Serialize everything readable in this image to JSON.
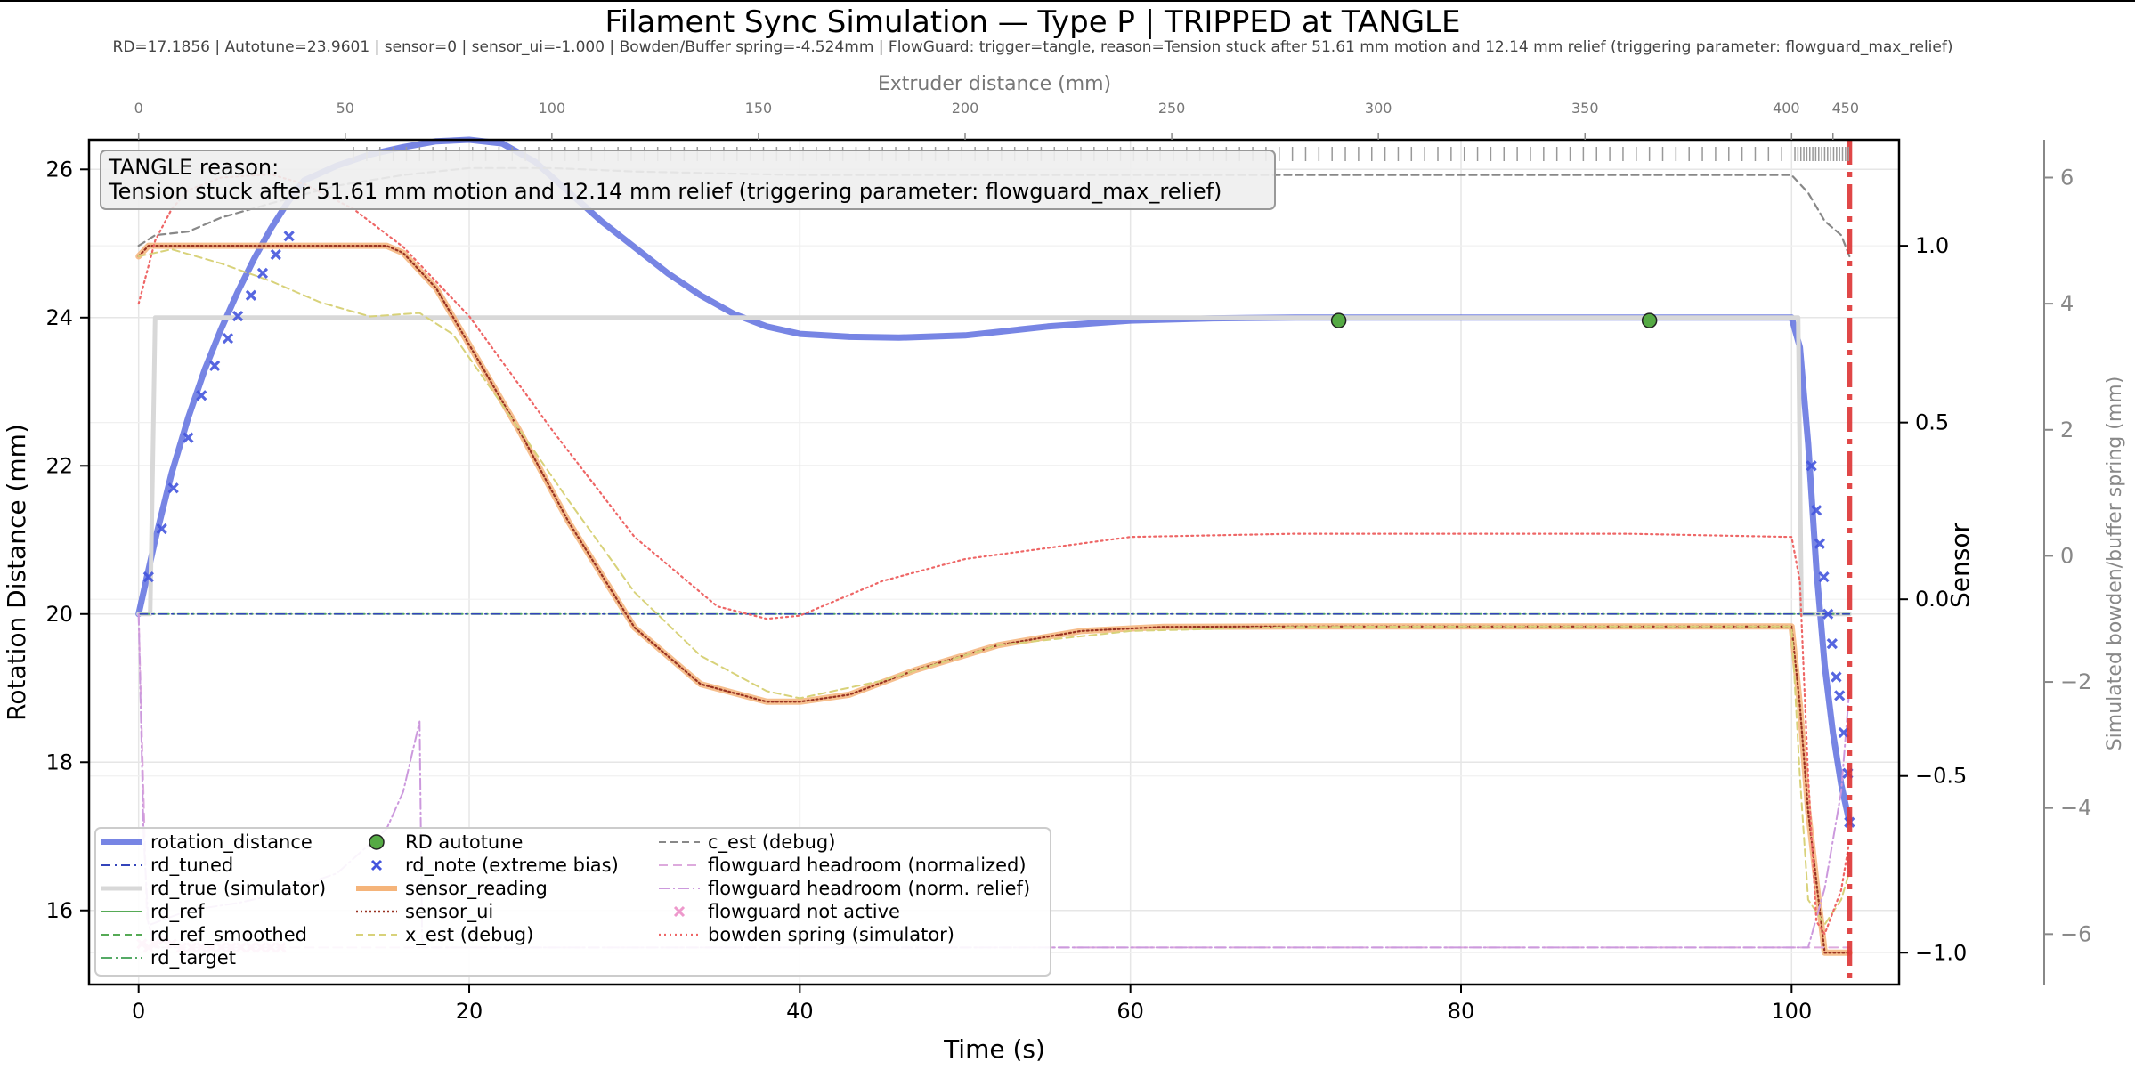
{
  "chart_data": {
    "type": "line",
    "title": "Filament Sync Simulation — Type P | TRIPPED at TANGLE",
    "subtitle": "RD=17.1856 | Autotune=23.9601 | sensor=0 | sensor_ui=-1.000 | Bowden/Buffer spring=-4.524mm | FlowGuard: trigger=tangle, reason=Tension stuck after 51.61 mm motion and 12.14 mm relief (triggering parameter: flowguard_max_relief)",
    "xlabel": "Time (s)",
    "ylabel": "Rotation Distance (mm)",
    "y2label": "Sensor",
    "y3label": "Simulated bowden/buffer spring (mm)",
    "top_xlabel": "Extruder distance (mm)",
    "xlim": [
      -3,
      106.5
    ],
    "ylim": [
      15.0,
      26.4
    ],
    "y2lim": [
      -1.09,
      1.3
    ],
    "y3lim": [
      -6.8,
      6.6
    ],
    "x_ticks": [
      0,
      20,
      40,
      60,
      80,
      100
    ],
    "y_ticks": [
      16,
      18,
      20,
      22,
      24,
      26
    ],
    "y2_ticks": [
      -1.0,
      -0.5,
      0.0,
      0.5,
      1.0
    ],
    "y2_tick_labels": [
      "−1.0",
      "−0.5",
      "0.0",
      "0.5",
      "1.0"
    ],
    "y3_ticks": [
      -6,
      -4,
      -2,
      0,
      2,
      4,
      6
    ],
    "y3_tick_labels": [
      "−6",
      "−4",
      "−2",
      "0",
      "2",
      "4",
      "6"
    ],
    "top_ticks": [
      {
        "t": 0,
        "label": "0"
      },
      {
        "t": 12.5,
        "label": "50"
      },
      {
        "t": 25,
        "label": "100"
      },
      {
        "t": 37.5,
        "label": "150"
      },
      {
        "t": 50,
        "label": "200"
      },
      {
        "t": 62.5,
        "label": "250"
      },
      {
        "t": 75,
        "label": "300"
      },
      {
        "t": 87.5,
        "label": "350"
      },
      {
        "t": 100,
        "label": "400"
      },
      {
        "t": 102.5,
        "label": "450"
      }
    ],
    "grid": true,
    "trip_time": 103.5,
    "annotation": {
      "title": "TANGLE reason:",
      "text": "Tension stuck after 51.61 mm motion and 12.14 mm relief (triggering parameter: flowguard_max_relief)"
    },
    "legend_position": "lower-left",
    "legend": [
      [
        "rotation_distance",
        "rd_tuned",
        "rd_true (simulator)",
        "rd_ref",
        "rd_ref_smoothed",
        "rd_target"
      ],
      [
        "RD autotune",
        "rd_note (extreme bias)",
        "sensor_reading",
        "sensor_ui",
        "x_est (debug)"
      ],
      [
        "c_est (debug)",
        "flowguard headroom (normalized)",
        "flowguard headroom (norm. relief)",
        "flowguard not active",
        "bowden spring (simulator)"
      ]
    ],
    "series": [
      {
        "name": "rotation_distance",
        "axis": "y",
        "color": "#5566dd",
        "x": [
          0,
          1,
          2,
          3,
          4,
          5,
          6,
          7,
          8,
          9,
          10,
          12,
          14,
          16,
          18,
          20,
          22,
          24,
          26,
          28,
          30,
          32,
          34,
          36,
          38,
          40,
          43,
          46,
          50,
          55,
          60,
          65,
          70,
          75,
          80,
          85,
          90,
          95,
          100,
          100.5,
          101,
          101.5,
          102,
          102.5,
          103,
          103.5
        ],
        "y": [
          20.0,
          21.0,
          21.9,
          22.65,
          23.3,
          23.85,
          24.35,
          24.8,
          25.2,
          25.55,
          25.85,
          26.05,
          26.2,
          26.3,
          26.38,
          26.4,
          26.35,
          26.1,
          25.7,
          25.3,
          24.95,
          24.6,
          24.3,
          24.05,
          23.88,
          23.78,
          23.74,
          23.73,
          23.76,
          23.88,
          23.96,
          23.99,
          24.0,
          24.0,
          24.0,
          24.0,
          24.0,
          24.0,
          24.0,
          23.6,
          22.3,
          20.6,
          19.3,
          18.4,
          17.7,
          17.19
        ]
      },
      {
        "name": "rd_true (simulator)",
        "axis": "y",
        "color": "#d8d8d8",
        "x": [
          0,
          0.7,
          1.0,
          100,
          100.4,
          100.6,
          103.5
        ],
        "y": [
          20.0,
          20.0,
          24.0,
          24.0,
          24.0,
          20.0,
          20.0
        ]
      },
      {
        "name": "rd_target",
        "axis": "y",
        "color": "#55aa66",
        "x": [
          0,
          103.5
        ],
        "y": [
          20.0,
          20.0
        ]
      },
      {
        "name": "rd_tuned",
        "axis": "y",
        "color": "#3344bb",
        "x": [
          0,
          103.5
        ],
        "y": [
          20.0,
          20.0
        ]
      },
      {
        "name": "sensor_reading",
        "axis": "y2",
        "color": "#f5b47a",
        "x": [
          0,
          0.6,
          1,
          15,
          16,
          18,
          20,
          23,
          26,
          30,
          34,
          38,
          40,
          43,
          47,
          52,
          57,
          62,
          70,
          80,
          90,
          100,
          100.5,
          101,
          102,
          103.5
        ],
        "y": [
          0.97,
          1.0,
          1.0,
          1.0,
          0.98,
          0.88,
          0.72,
          0.48,
          0.22,
          -0.08,
          -0.24,
          -0.29,
          -0.29,
          -0.27,
          -0.2,
          -0.13,
          -0.09,
          -0.078,
          -0.077,
          -0.077,
          -0.077,
          -0.077,
          -0.3,
          -0.6,
          -1.0,
          -1.0
        ]
      },
      {
        "name": "sensor_ui",
        "axis": "y2",
        "color": "#993322",
        "x": [
          0,
          0.6,
          1,
          15,
          16,
          18,
          20,
          23,
          26,
          30,
          34,
          38,
          40,
          43,
          47,
          52,
          57,
          62,
          70,
          80,
          90,
          100,
          100.5,
          101,
          102,
          103.5
        ],
        "y": [
          0.97,
          1.0,
          1.0,
          1.0,
          0.98,
          0.88,
          0.72,
          0.48,
          0.22,
          -0.08,
          -0.24,
          -0.29,
          -0.29,
          -0.27,
          -0.2,
          -0.13,
          -0.09,
          -0.078,
          -0.077,
          -0.077,
          -0.077,
          -0.077,
          -0.3,
          -0.6,
          -1.0,
          -1.0
        ]
      },
      {
        "name": "x_est (debug)",
        "axis": "y2",
        "color": "#d8d27a",
        "x": [
          0,
          2,
          5,
          8,
          11,
          14,
          17,
          19,
          22,
          26,
          30,
          34,
          38,
          40,
          45,
          52,
          60,
          70,
          80,
          90,
          100,
          100.5,
          101,
          102,
          103,
          103.5
        ],
        "y": [
          0.97,
          0.99,
          0.95,
          0.9,
          0.84,
          0.8,
          0.81,
          0.75,
          0.55,
          0.28,
          0.02,
          -0.16,
          -0.26,
          -0.28,
          -0.23,
          -0.13,
          -0.09,
          -0.078,
          -0.077,
          -0.077,
          -0.077,
          -0.5,
          -0.85,
          -0.92,
          -0.85,
          -0.77
        ]
      },
      {
        "name": "c_est (debug)",
        "axis": "y2",
        "color": "#888888",
        "x": [
          0,
          1,
          3,
          5,
          8,
          12,
          16,
          20,
          25,
          30,
          40,
          50,
          60,
          70,
          80,
          90,
          100,
          101,
          102,
          103,
          103.5
        ],
        "y": [
          1.0,
          1.03,
          1.04,
          1.08,
          1.12,
          1.17,
          1.2,
          1.22,
          1.22,
          1.21,
          1.2,
          1.2,
          1.2,
          1.2,
          1.2,
          1.2,
          1.2,
          1.15,
          1.07,
          1.03,
          0.97
        ]
      },
      {
        "name": "flowguard headroom (normalized)",
        "axis": "y",
        "color": "#ddaadd",
        "x": [
          0,
          0.5,
          1,
          17,
          17.3,
          103.5
        ],
        "y": [
          20.0,
          15.9,
          15.5,
          15.5,
          15.5,
          15.5
        ]
      },
      {
        "name": "flowguard headroom (norm. relief)",
        "axis": "y",
        "color": "#cc99dd",
        "x": [
          0,
          0.3,
          0.6,
          3,
          6,
          8,
          12,
          15,
          16,
          17,
          17.15,
          17.3,
          101,
          102,
          103,
          103.5
        ],
        "y": [
          20.0,
          17.0,
          15.8,
          16.0,
          16.1,
          16.2,
          16.5,
          17.1,
          17.6,
          18.55,
          15.6,
          15.5,
          15.5,
          16.3,
          17.6,
          19.0
        ]
      },
      {
        "name": "bowden spring (simulator)",
        "axis": "y3",
        "color": "#ee6666",
        "x": [
          0,
          1,
          2,
          3,
          5,
          8,
          10,
          13,
          16,
          20,
          25,
          30,
          35,
          38,
          40,
          45,
          50,
          60,
          70,
          80,
          90,
          100,
          100.5,
          101,
          101.5,
          102,
          103,
          103.5
        ],
        "y": [
          4.0,
          5.0,
          5.5,
          5.8,
          6.0,
          6.05,
          5.9,
          5.5,
          4.9,
          3.8,
          2.0,
          0.3,
          -0.8,
          -1.0,
          -0.95,
          -0.4,
          -0.05,
          0.3,
          0.35,
          0.35,
          0.35,
          0.3,
          -0.4,
          -3.5,
          -5.8,
          -6.0,
          -5.3,
          -4.52
        ]
      },
      {
        "name": "RD autotune",
        "axis": "y",
        "color": "#55aa44",
        "marker": "circle",
        "x": [
          72.6,
          91.4
        ],
        "y": [
          23.96,
          23.96
        ]
      },
      {
        "name": "rd_note (extreme bias)",
        "axis": "y",
        "color": "#4455dd",
        "marker": "x",
        "x": [
          0.6,
          1.4,
          2.1,
          3.0,
          3.8,
          4.6,
          5.4,
          6.0,
          6.8,
          7.5,
          8.3,
          9.1,
          101.2,
          101.5,
          101.7,
          101.95,
          102.2,
          102.45,
          102.7,
          102.9,
          103.15,
          103.4,
          103.5
        ],
        "y": [
          20.5,
          21.15,
          21.7,
          22.38,
          22.95,
          23.35,
          23.72,
          24.02,
          24.3,
          24.6,
          24.85,
          25.1,
          22.0,
          21.4,
          20.95,
          20.5,
          20.0,
          19.6,
          19.15,
          18.9,
          18.4,
          17.85,
          17.19
        ]
      },
      {
        "name": "flowguard not active",
        "axis": "y",
        "color": "#ee99cc",
        "marker": "x",
        "x": [
          0.2,
          0.6,
          1.0,
          1.5,
          2.0,
          2.6,
          3.2,
          3.8,
          4.4,
          5.0,
          5.6,
          6.2,
          6.8,
          7.4,
          8.0,
          8.6
        ],
        "y": [
          15.55,
          15.5,
          15.55,
          15.6,
          15.55,
          15.5,
          15.5,
          15.5,
          15.5,
          15.5,
          15.5,
          15.5,
          15.5,
          15.5,
          15.5,
          15.5
        ]
      }
    ]
  }
}
